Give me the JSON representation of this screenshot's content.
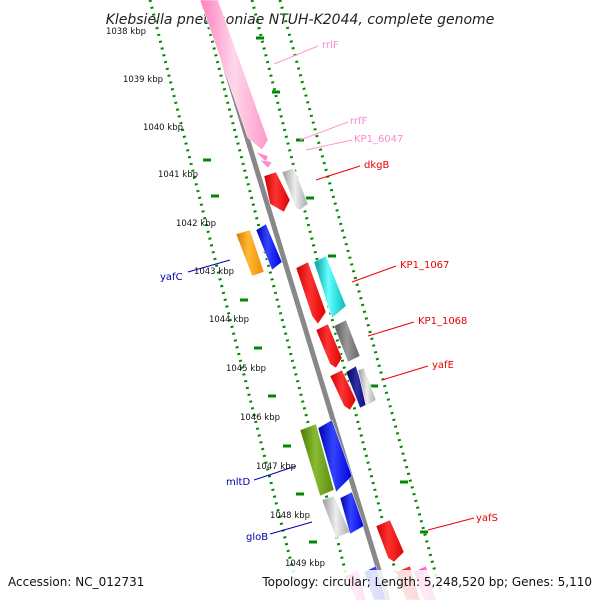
{
  "title": "Klebsiella pneumoniae NTUH-K2044, complete genome",
  "accession": "Accession: NC_012731",
  "summary": "Topology: circular; Length: 5,248,520 bp; Genes: 5,110",
  "kbp_labels": [
    "1038 kbp",
    "1039 kbp",
    "1040 kbp",
    "1041 kbp",
    "1042 kbp",
    "1043 kbp",
    "1044 kbp",
    "1045 kbp",
    "1046 kbp",
    "1047 kbp",
    "1048 kbp",
    "1049 kbp"
  ],
  "gene_labels": [
    "rrlF",
    "rrfF",
    "KP1_6047",
    "dkgB",
    "yafC",
    "KP1_1067",
    "KP1_1068",
    "yafE",
    "mltD",
    "gloB",
    "yafS"
  ],
  "colors": {
    "ticks": "#008800",
    "backbone": "#888888",
    "rRNA": "#ff99cc",
    "red": "#ee0000",
    "gray": "#aaaaaa",
    "darkgray": "#666666",
    "blue": "#0000ee",
    "navy": "#000080",
    "orange": "#ff9900",
    "cyan": "#00cccc",
    "olive": "#669900",
    "magenta": "#ff33aa"
  }
}
